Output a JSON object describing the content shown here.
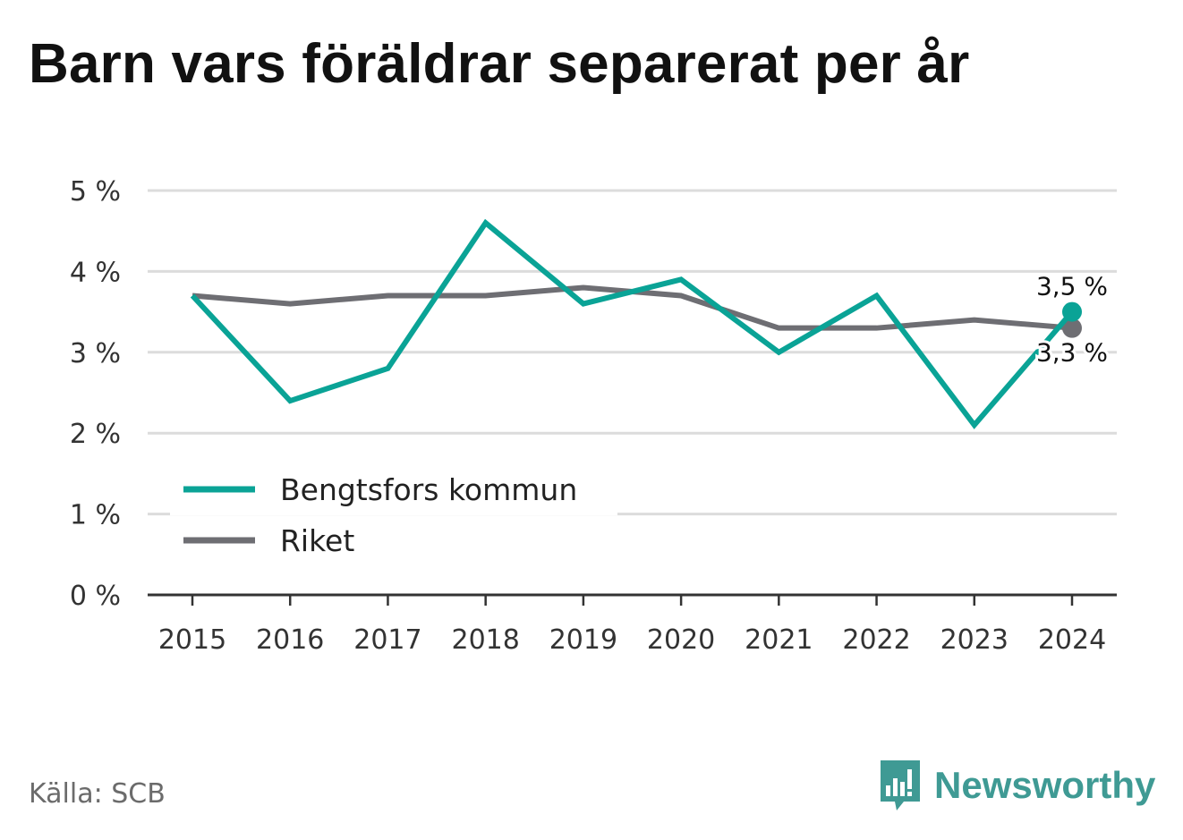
{
  "title": "Barn vars föräldrar separerat per år",
  "source": "Källa: SCB",
  "brand": {
    "name": "Newsworthy",
    "icon": "bar-chart-speech-bubble-icon"
  },
  "colors": {
    "bengtsfors": "#0aa396",
    "riket": "#6e6e73",
    "grid": "#dcdcdc",
    "axis": "#333333",
    "text": "#333333"
  },
  "chart_data": {
    "type": "line",
    "title": "Barn vars föräldrar separerat per år",
    "categories": [
      "2015",
      "2016",
      "2017",
      "2018",
      "2019",
      "2020",
      "2021",
      "2022",
      "2023",
      "2024"
    ],
    "y_ticks": [
      "0 %",
      "1 %",
      "2 %",
      "3 %",
      "4 %",
      "5 %"
    ],
    "ylim": [
      0,
      5
    ],
    "grid": true,
    "legend_position": "bottom-left",
    "series": [
      {
        "name": "Bengtsfors kommun",
        "values": [
          3.7,
          2.4,
          2.8,
          4.6,
          3.6,
          3.9,
          3.0,
          3.7,
          2.1,
          3.5
        ],
        "end_label": "3,5 %"
      },
      {
        "name": "Riket",
        "values": [
          3.7,
          3.6,
          3.7,
          3.7,
          3.8,
          3.7,
          3.3,
          3.3,
          3.4,
          3.3
        ],
        "end_label": "3,3 %"
      }
    ]
  }
}
